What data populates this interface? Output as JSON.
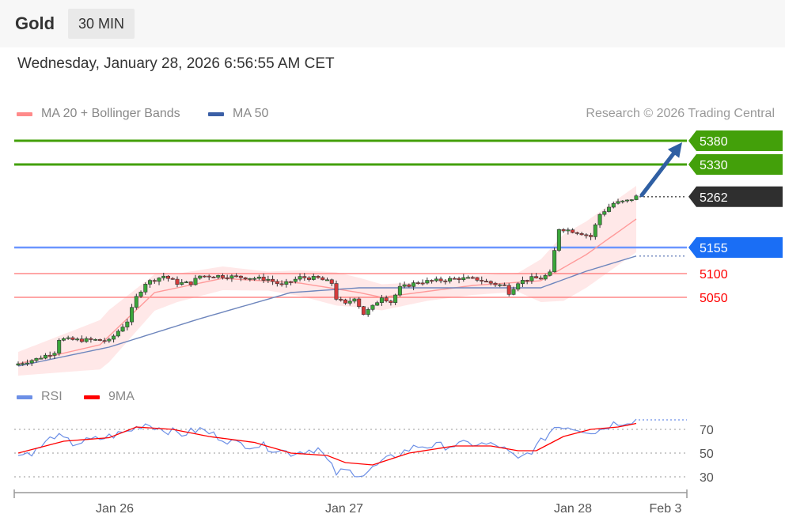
{
  "header": {
    "instrument": "Gold",
    "interval": "30 MIN"
  },
  "timestamp": "Wednesday, January 28, 2026 6:56:55 AM CET",
  "legend": {
    "ma20": {
      "label": "MA 20 + Bollinger Bands",
      "color": "#ff8a8a"
    },
    "ma50": {
      "label": "MA 50",
      "color": "#3b5fa6"
    }
  },
  "credit": "Research © 2026 Trading Central",
  "rsi_legend": {
    "rsi": {
      "label": "RSI",
      "color": "#6c8fe6"
    },
    "ma9": {
      "label": "9MA",
      "color": "#ff0000"
    }
  },
  "levels": {
    "resistance": [
      {
        "value": 5380,
        "label": "5380",
        "color": "#43a00a"
      },
      {
        "value": 5330,
        "label": "5330",
        "color": "#43a00a"
      }
    ],
    "current": {
      "value": 5262,
      "label": "5262",
      "color": "#2f2f2f"
    },
    "pivot": {
      "value": 5155,
      "label": "5155",
      "color": "#1a6ef5"
    },
    "support": [
      {
        "value": 5100,
        "label": "5100",
        "color": "#ff0000"
      },
      {
        "value": 5050,
        "label": "5050",
        "color": "#ff0000"
      }
    ]
  },
  "chart_data": [
    {
      "type": "candlestick",
      "title": "Gold 30 MIN",
      "x_ticks": [
        "Jan 26",
        "Jan 27",
        "Jan 28",
        "Feb 3"
      ],
      "ylim": [
        4890,
        5400
      ],
      "series": [
        {
          "name": "MA 20 + Bollinger Bands",
          "color": "#ff8a8a"
        },
        {
          "name": "MA 50",
          "color": "#3b5fa6"
        }
      ],
      "close_anchors": [
        [
          0,
          4910
        ],
        [
          4,
          4920
        ],
        [
          8,
          4935
        ],
        [
          9,
          4962
        ],
        [
          13,
          4960
        ],
        [
          17,
          4960
        ],
        [
          20,
          4958
        ],
        [
          24,
          5000
        ],
        [
          26,
          5050
        ],
        [
          28,
          5080
        ],
        [
          32,
          5095
        ],
        [
          35,
          5080
        ],
        [
          38,
          5080
        ],
        [
          40,
          5095
        ],
        [
          44,
          5095
        ],
        [
          50,
          5092
        ],
        [
          55,
          5088
        ],
        [
          58,
          5075
        ],
        [
          62,
          5092
        ],
        [
          66,
          5090
        ],
        [
          69,
          5080
        ],
        [
          70,
          5048
        ],
        [
          72,
          5035
        ],
        [
          74,
          5050
        ],
        [
          76,
          5015
        ],
        [
          78,
          5030
        ],
        [
          80,
          5052
        ],
        [
          82,
          5040
        ],
        [
          84,
          5070
        ],
        [
          88,
          5082
        ],
        [
          92,
          5085
        ],
        [
          97,
          5090
        ],
        [
          101,
          5088
        ],
        [
          104,
          5080
        ],
        [
          107,
          5074
        ],
        [
          108,
          5060
        ],
        [
          110,
          5082
        ],
        [
          113,
          5090
        ],
        [
          115,
          5090
        ],
        [
          117,
          5100
        ],
        [
          119,
          5195
        ],
        [
          121,
          5192
        ],
        [
          124,
          5185
        ],
        [
          126,
          5178
        ],
        [
          128,
          5225
        ],
        [
          131,
          5248
        ],
        [
          134,
          5253
        ],
        [
          136,
          5262
        ]
      ],
      "ma20_anchors": [
        [
          0,
          4910
        ],
        [
          18,
          4950
        ],
        [
          30,
          5060
        ],
        [
          45,
          5090
        ],
        [
          62,
          5080
        ],
        [
          75,
          5060
        ],
        [
          80,
          5050
        ],
        [
          100,
          5075
        ],
        [
          115,
          5085
        ],
        [
          125,
          5140
        ],
        [
          136,
          5215
        ]
      ],
      "band_width_anchors": [
        [
          0,
          25
        ],
        [
          10,
          40
        ],
        [
          20,
          55
        ],
        [
          35,
          30
        ],
        [
          55,
          20
        ],
        [
          70,
          35
        ],
        [
          90,
          20
        ],
        [
          110,
          20
        ],
        [
          120,
          70
        ],
        [
          136,
          70
        ]
      ],
      "ma50_anchors": [
        [
          0,
          4905
        ],
        [
          20,
          4945
        ],
        [
          40,
          5005
        ],
        [
          60,
          5060
        ],
        [
          75,
          5070
        ],
        [
          110,
          5070
        ],
        [
          115,
          5070
        ],
        [
          125,
          5105
        ],
        [
          136,
          5137
        ]
      ],
      "forecast_target": 5380
    },
    {
      "type": "line",
      "title": "RSI",
      "ylim": [
        20,
        90
      ],
      "y_ticks": [
        30,
        50,
        70
      ],
      "series": [
        {
          "name": "RSI",
          "color": "#6c8fe6",
          "anchors": [
            [
              0,
              48
            ],
            [
              4,
              52
            ],
            [
              8,
              65
            ],
            [
              12,
              58
            ],
            [
              18,
              62
            ],
            [
              24,
              68
            ],
            [
              28,
              75
            ],
            [
              32,
              70
            ],
            [
              36,
              66
            ],
            [
              40,
              70
            ],
            [
              44,
              64
            ],
            [
              48,
              58
            ],
            [
              54,
              56
            ],
            [
              60,
              50
            ],
            [
              66,
              54
            ],
            [
              70,
              33
            ],
            [
              72,
              35
            ],
            [
              76,
              32
            ],
            [
              80,
              42
            ],
            [
              84,
              50
            ],
            [
              88,
              56
            ],
            [
              94,
              56
            ],
            [
              100,
              58
            ],
            [
              106,
              56
            ],
            [
              110,
              44
            ],
            [
              114,
              55
            ],
            [
              118,
              72
            ],
            [
              120,
              73
            ],
            [
              124,
              70
            ],
            [
              127,
              68
            ],
            [
              131,
              75
            ],
            [
              134,
              77
            ],
            [
              136,
              78
            ]
          ]
        },
        {
          "name": "9MA",
          "color": "#ff0000",
          "anchors": [
            [
              0,
              50
            ],
            [
              10,
              60
            ],
            [
              20,
              63
            ],
            [
              26,
              72
            ],
            [
              34,
              70
            ],
            [
              42,
              64
            ],
            [
              52,
              59
            ],
            [
              60,
              50
            ],
            [
              68,
              48
            ],
            [
              72,
              42
            ],
            [
              78,
              40
            ],
            [
              86,
              50
            ],
            [
              96,
              56
            ],
            [
              104,
              56
            ],
            [
              110,
              52
            ],
            [
              114,
              52
            ],
            [
              120,
              64
            ],
            [
              126,
              70
            ],
            [
              132,
              72
            ],
            [
              136,
              75
            ]
          ]
        }
      ]
    }
  ]
}
